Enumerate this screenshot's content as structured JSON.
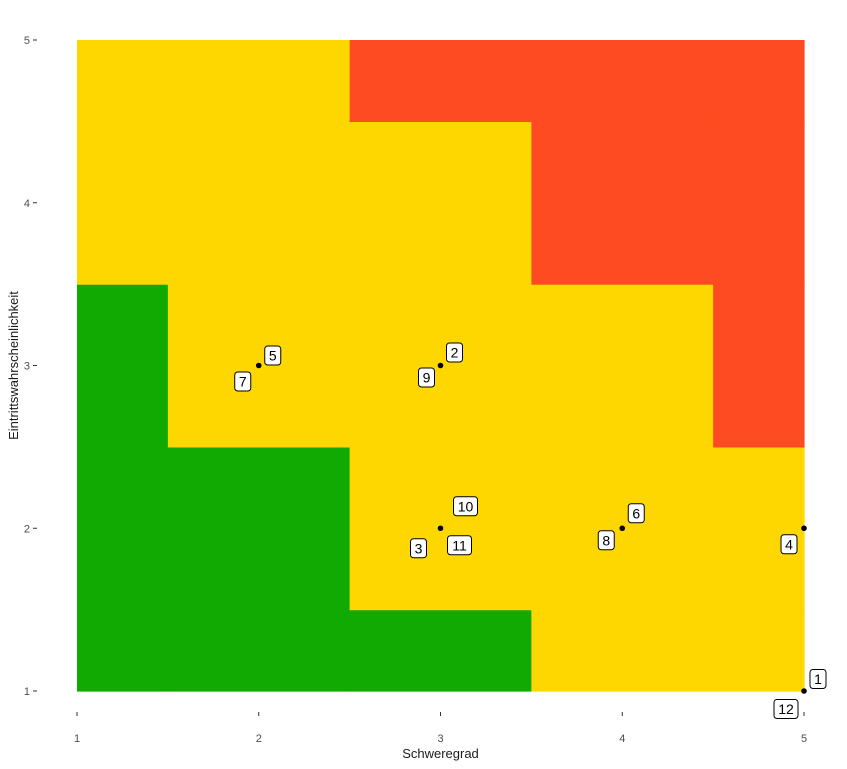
{
  "chart_data": {
    "type": "heatmap",
    "xlabel": "Schweregrad",
    "ylabel": "Eintrittswahrscheinlichkeit",
    "xlim": [
      1,
      5
    ],
    "ylim": [
      1,
      5
    ],
    "x_ticks": [
      {
        "value": 1,
        "label": "1"
      },
      {
        "value": 2,
        "label": "2"
      },
      {
        "value": 3,
        "label": "3"
      },
      {
        "value": 4,
        "label": "4"
      },
      {
        "value": 5,
        "label": "5"
      }
    ],
    "y_ticks": [
      {
        "value": 1,
        "label": "1"
      },
      {
        "value": 2,
        "label": "2"
      },
      {
        "value": 3,
        "label": "3"
      },
      {
        "value": 4,
        "label": "4"
      },
      {
        "value": 5,
        "label": "5"
      }
    ],
    "grid": false,
    "colors": {
      "green": "#10AA00",
      "yellow": "#FFD700",
      "red": "#FF4B21"
    },
    "cells": [
      {
        "x": 1,
        "y": 1,
        "zone": "green"
      },
      {
        "x": 2,
        "y": 1,
        "zone": "green"
      },
      {
        "x": 3,
        "y": 1,
        "zone": "green"
      },
      {
        "x": 4,
        "y": 1,
        "zone": "yellow"
      },
      {
        "x": 5,
        "y": 1,
        "zone": "yellow"
      },
      {
        "x": 1,
        "y": 2,
        "zone": "green"
      },
      {
        "x": 2,
        "y": 2,
        "zone": "green"
      },
      {
        "x": 3,
        "y": 2,
        "zone": "yellow"
      },
      {
        "x": 4,
        "y": 2,
        "zone": "yellow"
      },
      {
        "x": 5,
        "y": 2,
        "zone": "yellow"
      },
      {
        "x": 1,
        "y": 3,
        "zone": "green"
      },
      {
        "x": 2,
        "y": 3,
        "zone": "yellow"
      },
      {
        "x": 3,
        "y": 3,
        "zone": "yellow"
      },
      {
        "x": 4,
        "y": 3,
        "zone": "yellow"
      },
      {
        "x": 5,
        "y": 3,
        "zone": "red"
      },
      {
        "x": 1,
        "y": 4,
        "zone": "yellow"
      },
      {
        "x": 2,
        "y": 4,
        "zone": "yellow"
      },
      {
        "x": 3,
        "y": 4,
        "zone": "yellow"
      },
      {
        "x": 4,
        "y": 4,
        "zone": "red"
      },
      {
        "x": 5,
        "y": 4,
        "zone": "red"
      },
      {
        "x": 1,
        "y": 5,
        "zone": "yellow"
      },
      {
        "x": 2,
        "y": 5,
        "zone": "yellow"
      },
      {
        "x": 3,
        "y": 5,
        "zone": "red"
      },
      {
        "x": 4,
        "y": 5,
        "zone": "red"
      },
      {
        "x": 5,
        "y": 5,
        "zone": "red"
      }
    ],
    "points": [
      {
        "x": 2,
        "y": 3
      },
      {
        "x": 3,
        "y": 3
      },
      {
        "x": 3,
        "y": 2
      },
      {
        "x": 4,
        "y": 2
      },
      {
        "x": 5,
        "y": 2
      },
      {
        "x": 5,
        "y": 1
      }
    ],
    "labels": [
      {
        "text": "1",
        "x": 5,
        "y": 1
      },
      {
        "text": "2",
        "x": 3,
        "y": 3
      },
      {
        "text": "3",
        "x": 3,
        "y": 2
      },
      {
        "text": "4",
        "x": 5,
        "y": 2
      },
      {
        "text": "5",
        "x": 2,
        "y": 3
      },
      {
        "text": "6",
        "x": 4,
        "y": 2
      },
      {
        "text": "7",
        "x": 2,
        "y": 3
      },
      {
        "text": "8",
        "x": 4,
        "y": 2
      },
      {
        "text": "9",
        "x": 3,
        "y": 3
      },
      {
        "text": "10",
        "x": 3,
        "y": 2
      },
      {
        "text": "11",
        "x": 3,
        "y": 2
      },
      {
        "text": "12",
        "x": 5,
        "y": 1
      }
    ]
  }
}
